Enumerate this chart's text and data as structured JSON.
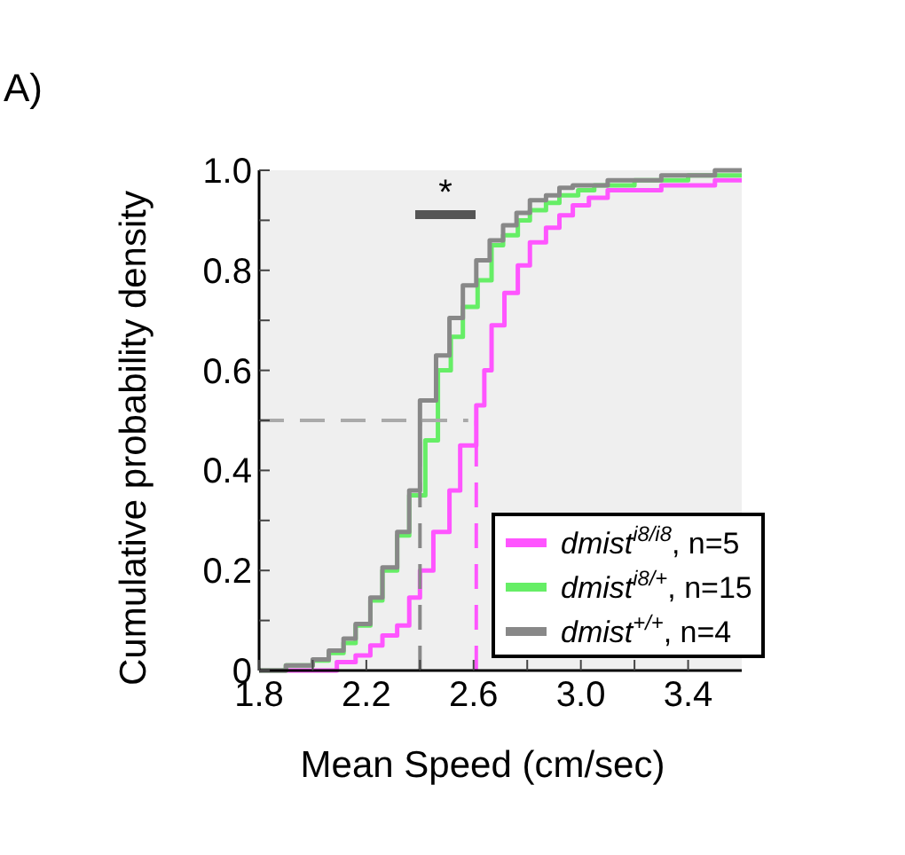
{
  "chart_data": {
    "type": "step",
    "xlabel": "Mean Speed (cm/sec)",
    "ylabel": "Cumulative probability density",
    "xlim": [
      1.8,
      3.6
    ],
    "ylim": [
      0,
      1
    ],
    "xticks": [
      1.8,
      {
        "value": 2.0,
        "label": null
      },
      2.2,
      {
        "value": 2.4,
        "label": null
      },
      2.6,
      {
        "value": 2.8,
        "label": null
      },
      {
        "value": 3.0,
        "label": "3.0"
      },
      {
        "value": 3.2,
        "label": null
      },
      3.4
    ],
    "yticks": [
      0,
      {
        "value": 0.1,
        "label": null
      },
      0.2,
      {
        "value": 0.3,
        "label": null
      },
      0.4,
      {
        "value": 0.5,
        "label": null
      },
      0.6,
      {
        "value": 0.7,
        "label": null
      },
      0.8,
      {
        "value": 0.9,
        "label": null
      },
      {
        "value": 1.0,
        "label": "1.0"
      }
    ],
    "legend": "bottom right",
    "annotations": [
      "A)",
      "*"
    ],
    "series": [
      {
        "name": "dmist$^{i8/i8}$, n=5",
        "color": "#ff55ff",
        "x": [
          1.8,
          2.09,
          2.16,
          2.215,
          2.26,
          2.315,
          2.36,
          2.4,
          2.45,
          2.51,
          2.55,
          2.61,
          2.64,
          2.667,
          2.715,
          2.765,
          2.81,
          2.87,
          2.92,
          2.97,
          3.03,
          3.1,
          3.3,
          3.5,
          3.6
        ],
        "values": [
          0,
          0.017,
          0.03,
          0.05,
          0.07,
          0.09,
          0.146,
          0.2,
          0.277,
          0.36,
          0.45,
          0.53,
          0.6,
          0.69,
          0.755,
          0.81,
          0.856,
          0.885,
          0.91,
          0.93,
          0.945,
          0.96,
          0.97,
          0.98,
          0.98
        ]
      },
      {
        "name": "dmist$^{i8/+}$, n=15",
        "color": "#66ee66",
        "x": [
          1.8,
          1.9,
          2.0,
          2.06,
          2.115,
          2.16,
          2.215,
          2.26,
          2.315,
          2.36,
          2.42,
          2.467,
          2.515,
          2.56,
          2.615,
          2.667,
          2.71,
          2.765,
          2.81,
          2.87,
          2.92,
          2.99,
          3.05,
          3.2,
          3.4,
          3.6
        ],
        "values": [
          0,
          0.01,
          0.02,
          0.035,
          0.055,
          0.09,
          0.14,
          0.2,
          0.27,
          0.35,
          0.46,
          0.6,
          0.667,
          0.727,
          0.78,
          0.85,
          0.87,
          0.9,
          0.92,
          0.935,
          0.95,
          0.96,
          0.97,
          0.98,
          0.99,
          0.99
        ]
      },
      {
        "name": "dmist$^{+/+}$, n=4",
        "color": "#888888",
        "x": [
          1.8,
          1.9,
          2.0,
          2.06,
          2.115,
          2.16,
          2.215,
          2.26,
          2.315,
          2.36,
          2.4,
          2.46,
          2.51,
          2.56,
          2.61,
          2.66,
          2.71,
          2.76,
          2.81,
          2.87,
          2.92,
          2.97,
          3.1,
          3.3,
          3.5,
          3.6
        ],
        "values": [
          0,
          0.01,
          0.022,
          0.04,
          0.064,
          0.093,
          0.146,
          0.206,
          0.277,
          0.36,
          0.54,
          0.63,
          0.705,
          0.77,
          0.82,
          0.86,
          0.89,
          0.915,
          0.94,
          0.95,
          0.965,
          0.97,
          0.98,
          0.99,
          1.0,
          1.0
        ]
      },
      {
        "type": "line",
        "line_style": "dashed",
        "color": "#aaaaaa",
        "x": [
          1.8,
          2.58
        ],
        "values": [
          0.5,
          0.5
        ]
      },
      {
        "type": "line",
        "line_style": "dashed",
        "color": "#888888",
        "x": [
          2.4,
          2.4
        ],
        "values": [
          0,
          0.5
        ]
      },
      {
        "type": "line",
        "line_style": "dashed",
        "color": "#ff55ff",
        "x": [
          2.61,
          2.61
        ],
        "values": [
          0,
          0.5
        ]
      }
    ]
  }
}
